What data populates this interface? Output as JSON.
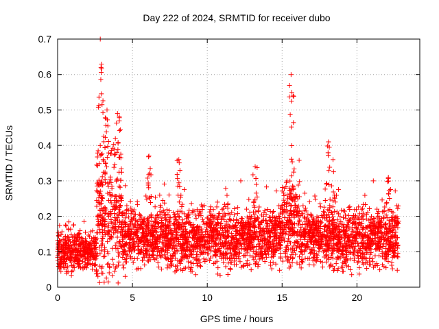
{
  "chart_data": {
    "type": "scatter",
    "title": "Day 222 of 2024, SRMTID for receiver dubo",
    "xlabel": "GPS time / hours",
    "ylabel": "SRMTID / TECUs",
    "xlim": [
      0,
      24.2
    ],
    "ylim": [
      0,
      0.7
    ],
    "xticks": [
      0,
      5,
      10,
      15,
      20
    ],
    "yticks": [
      0,
      0.1,
      0.2,
      0.3,
      0.4,
      0.5,
      0.6,
      0.7
    ],
    "xtick_labels": [
      "0",
      "5",
      "10",
      "15",
      "20"
    ],
    "ytick_labels": [
      "0",
      "0.1",
      "0.2",
      "0.3",
      "0.4",
      "0.5",
      "0.6",
      "0.7"
    ],
    "grid": true,
    "marker": "+",
    "color": "#ff0000",
    "series": [
      {
        "name": "SRMTID",
        "profile_note": "dense scatter; values read as approximate envelope",
        "segments": [
          {
            "x_start": 0.0,
            "x_end": 2.6,
            "baseline": 0.1,
            "spread": 0.06
          },
          {
            "x_start": 2.6,
            "x_end": 4.3,
            "baseline": 0.2,
            "spread": 0.2
          },
          {
            "x_start": 4.3,
            "x_end": 15.0,
            "baseline": 0.14,
            "spread": 0.09
          },
          {
            "x_start": 15.0,
            "x_end": 16.2,
            "baseline": 0.18,
            "spread": 0.14
          },
          {
            "x_start": 16.2,
            "x_end": 22.8,
            "baseline": 0.14,
            "spread": 0.09
          }
        ],
        "peaks": [
          {
            "x": 2.85,
            "y": 0.7
          },
          {
            "x": 2.9,
            "y": 0.62
          },
          {
            "x": 3.3,
            "y": 0.5
          },
          {
            "x": 4.0,
            "y": 0.49
          },
          {
            "x": 6.1,
            "y": 0.37
          },
          {
            "x": 8.1,
            "y": 0.36
          },
          {
            "x": 13.2,
            "y": 0.34
          },
          {
            "x": 15.6,
            "y": 0.6
          },
          {
            "x": 15.65,
            "y": 0.55
          },
          {
            "x": 18.1,
            "y": 0.41
          },
          {
            "x": 18.4,
            "y": 0.36
          },
          {
            "x": 22.1,
            "y": 0.31
          }
        ]
      }
    ]
  }
}
